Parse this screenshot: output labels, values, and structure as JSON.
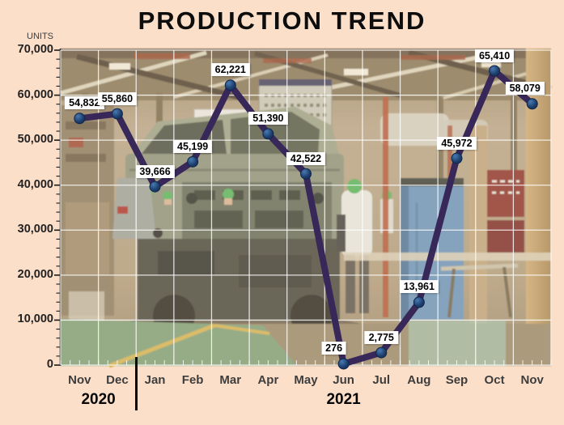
{
  "app": {
    "background": "#fcdfc9"
  },
  "chart_data": {
    "type": "line",
    "title": "PRODUCTION TREND",
    "ylabel": "UNITS",
    "xlabel": "",
    "categories": [
      "Nov",
      "Dec",
      "Jan",
      "Feb",
      "Mar",
      "Apr",
      "May",
      "Jun",
      "Jul",
      "Aug",
      "Sep",
      "Oct",
      "Nov"
    ],
    "values": [
      54832,
      55860,
      39666,
      45199,
      62221,
      51390,
      42522,
      276,
      2775,
      13961,
      45972,
      65410,
      58079
    ],
    "point_labels": [
      "54,832",
      "55,860",
      "39,666",
      "45,199",
      "62,221",
      "51,390",
      "42,522",
      "276",
      "2,775",
      "13,961",
      "45,972",
      "65,410",
      "58,079"
    ],
    "ylim": [
      0,
      70000
    ],
    "ytick_step": 10000,
    "ytick_labels": [
      "0",
      "10,000",
      "20,000",
      "30,000",
      "40,000",
      "50,000",
      "60,000",
      "70,000"
    ],
    "grid": true,
    "legend": "none",
    "year_groups": [
      {
        "label": "2020",
        "span": [
          0,
          1
        ]
      },
      {
        "label": "2021",
        "span": [
          2,
          12
        ]
      }
    ],
    "colors": {
      "line": "#38285a",
      "marker": "#1c3e6d",
      "label_box_bg": "#ffffff",
      "label_text": "#000000",
      "gridline": "#ffffff",
      "background": "#fcdfc9"
    }
  }
}
